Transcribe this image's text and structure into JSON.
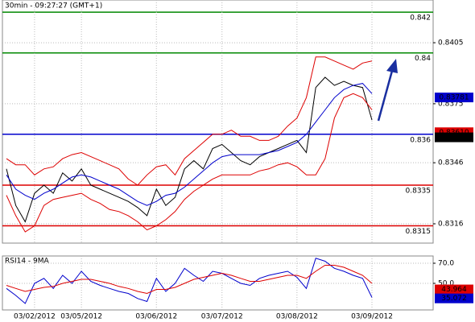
{
  "chart_data": [
    {
      "type": "line",
      "title": "30min - 09:27:27 (GMT+1)",
      "categories": [
        null,
        null,
        null,
        "03/02/2012",
        null,
        null,
        null,
        null,
        "03/05/2012",
        null,
        null,
        null,
        null,
        null,
        null,
        null,
        "03/06/2012",
        null,
        null,
        null,
        null,
        null,
        null,
        "03/07/2012",
        null,
        null,
        null,
        null,
        null,
        null,
        null,
        "03/08/2012",
        null,
        null,
        null,
        null,
        null,
        null,
        null,
        "03/09/2012"
      ],
      "series": [
        {
          "color": "#000000",
          "values": [
            0.8343,
            0.8325,
            0.8317,
            0.8331,
            0.8335,
            0.8331,
            0.8341,
            0.8337,
            0.8343,
            0.8335,
            0.8333,
            0.8331,
            0.8329,
            0.8327,
            0.8324,
            0.832,
            0.8333,
            0.8325,
            0.8329,
            0.8343,
            0.8347,
            0.8343,
            0.8353,
            0.8355,
            0.8351,
            0.8347,
            0.8345,
            0.8349,
            0.8351,
            0.8353,
            0.8355,
            0.8357,
            0.8351,
            0.8383,
            0.8388,
            0.8384,
            0.8386,
            0.8384,
            0.8383,
            0.8367
          ]
        },
        {
          "color": "#dd0000",
          "values": [
            0.8348,
            0.8345,
            0.8345,
            0.834,
            0.8343,
            0.8344,
            0.8348,
            0.835,
            0.8351,
            0.8349,
            0.8347,
            0.8345,
            0.8343,
            0.8338,
            0.8335,
            0.834,
            0.8344,
            0.8345,
            0.834,
            0.8348,
            0.8352,
            0.8356,
            0.836,
            0.836,
            0.8362,
            0.8359,
            0.8359,
            0.8357,
            0.8357,
            0.8359,
            0.8364,
            0.8368,
            0.8378,
            0.8398,
            0.8398,
            0.8396,
            0.8394,
            0.8392,
            0.8395,
            0.8396
          ]
        },
        {
          "color": "#dd0000",
          "values": [
            0.833,
            0.832,
            0.8312,
            0.8315,
            0.8325,
            0.8328,
            0.8329,
            0.833,
            0.8331,
            0.8328,
            0.8326,
            0.8323,
            0.8322,
            0.832,
            0.8317,
            0.8313,
            0.8315,
            0.8318,
            0.8322,
            0.8328,
            0.8332,
            0.8335,
            0.8338,
            0.834,
            0.834,
            0.834,
            0.834,
            0.8342,
            0.8343,
            0.8345,
            0.8346,
            0.8344,
            0.834,
            0.834,
            0.8348,
            0.8368,
            0.8378,
            0.838,
            0.8378,
            0.8372
          ]
        },
        {
          "color": "#0000cc",
          "values": [
            0.834,
            0.8333,
            0.833,
            0.8328,
            0.8331,
            0.8333,
            0.8336,
            0.8339,
            0.834,
            0.8339,
            0.8337,
            0.8335,
            0.8333,
            0.833,
            0.8327,
            0.8325,
            0.8327,
            0.833,
            0.8331,
            0.8334,
            0.8338,
            0.8342,
            0.8346,
            0.8349,
            0.835,
            0.835,
            0.835,
            0.835,
            0.8351,
            0.8352,
            0.8354,
            0.8356,
            0.836,
            0.8366,
            0.8372,
            0.8378,
            0.8382,
            0.8384,
            0.8385,
            0.838
          ]
        }
      ],
      "levels": [
        {
          "value": 0.842,
          "color": "#008800"
        },
        {
          "value": 0.84,
          "color": "#008800"
        },
        {
          "value": 0.836,
          "color": "#0000cc"
        },
        {
          "value": 0.8335,
          "color": "#dd0000"
        },
        {
          "value": 0.8315,
          "color": "#dd0000"
        }
      ],
      "markers": [
        {
          "value": 0.8361,
          "label": "0.83610",
          "color": "#dd0000"
        },
        {
          "value": 0.83781,
          "label": "0.83781",
          "color": "#0000cc"
        },
        {
          "value": 0.83585,
          "label": "0.83585",
          "color": "#000000"
        }
      ],
      "ylim": [
        0.83065,
        0.8426
      ],
      "yticks": [
        0.8405,
        0.8375,
        0.8346,
        0.8316
      ],
      "grid": true
    },
    {
      "type": "line",
      "title": "RSI14 - 9MA",
      "series": [
        {
          "color": "#0000cc",
          "values": [
            45,
            38,
            30,
            50,
            55,
            45,
            58,
            50,
            62,
            52,
            48,
            45,
            42,
            40,
            35,
            32,
            55,
            42,
            50,
            65,
            58,
            52,
            62,
            60,
            55,
            50,
            48,
            55,
            58,
            60,
            62,
            56,
            45,
            75,
            72,
            65,
            62,
            58,
            55,
            36
          ]
        },
        {
          "color": "#dd0000",
          "values": [
            48,
            45,
            42,
            44,
            46,
            47,
            50,
            52,
            54,
            54,
            52,
            50,
            47,
            45,
            42,
            40,
            44,
            44,
            46,
            50,
            54,
            56,
            58,
            60,
            58,
            55,
            52,
            52,
            54,
            56,
            58,
            58,
            55,
            62,
            68,
            68,
            66,
            62,
            58,
            50
          ]
        }
      ],
      "markers": [
        {
          "value": 43.964,
          "color": "#dd0000"
        },
        {
          "value": 35.072,
          "color": "#0000cc"
        }
      ],
      "ylim": [
        23.6,
        77.2
      ],
      "yticks": [
        {
          "value": 70,
          "label": "70.0"
        },
        {
          "value": 50,
          "label": "50.0"
        }
      ],
      "grid": true
    }
  ]
}
